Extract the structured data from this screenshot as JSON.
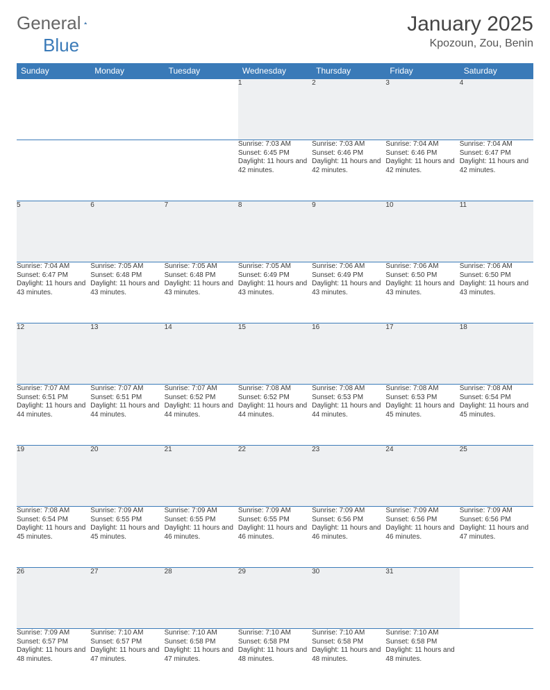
{
  "brand": {
    "part1": "General",
    "part2": "Blue"
  },
  "title": "January 2025",
  "location": "Kpozoun, Zou, Benin",
  "colors": {
    "header_bg": "#3a7ab8",
    "header_text": "#ffffff",
    "daynum_bg": "#eef0f2",
    "border": "#3a7ab8",
    "text": "#3a3a3a",
    "title": "#444444",
    "location": "#555555"
  },
  "fonts": {
    "body_pt": 10,
    "daynum_pt": 11,
    "header_pt": 12,
    "title_pt": 30,
    "location_pt": 16
  },
  "dayNames": [
    "Sunday",
    "Monday",
    "Tuesday",
    "Wednesday",
    "Thursday",
    "Friday",
    "Saturday"
  ],
  "weeks": [
    [
      null,
      null,
      null,
      {
        "n": 1,
        "sr": "7:03 AM",
        "ss": "6:45 PM",
        "dl": "11 hours and 42 minutes."
      },
      {
        "n": 2,
        "sr": "7:03 AM",
        "ss": "6:46 PM",
        "dl": "11 hours and 42 minutes."
      },
      {
        "n": 3,
        "sr": "7:04 AM",
        "ss": "6:46 PM",
        "dl": "11 hours and 42 minutes."
      },
      {
        "n": 4,
        "sr": "7:04 AM",
        "ss": "6:47 PM",
        "dl": "11 hours and 42 minutes."
      }
    ],
    [
      {
        "n": 5,
        "sr": "7:04 AM",
        "ss": "6:47 PM",
        "dl": "11 hours and 43 minutes."
      },
      {
        "n": 6,
        "sr": "7:05 AM",
        "ss": "6:48 PM",
        "dl": "11 hours and 43 minutes."
      },
      {
        "n": 7,
        "sr": "7:05 AM",
        "ss": "6:48 PM",
        "dl": "11 hours and 43 minutes."
      },
      {
        "n": 8,
        "sr": "7:05 AM",
        "ss": "6:49 PM",
        "dl": "11 hours and 43 minutes."
      },
      {
        "n": 9,
        "sr": "7:06 AM",
        "ss": "6:49 PM",
        "dl": "11 hours and 43 minutes."
      },
      {
        "n": 10,
        "sr": "7:06 AM",
        "ss": "6:50 PM",
        "dl": "11 hours and 43 minutes."
      },
      {
        "n": 11,
        "sr": "7:06 AM",
        "ss": "6:50 PM",
        "dl": "11 hours and 43 minutes."
      }
    ],
    [
      {
        "n": 12,
        "sr": "7:07 AM",
        "ss": "6:51 PM",
        "dl": "11 hours and 44 minutes."
      },
      {
        "n": 13,
        "sr": "7:07 AM",
        "ss": "6:51 PM",
        "dl": "11 hours and 44 minutes."
      },
      {
        "n": 14,
        "sr": "7:07 AM",
        "ss": "6:52 PM",
        "dl": "11 hours and 44 minutes."
      },
      {
        "n": 15,
        "sr": "7:08 AM",
        "ss": "6:52 PM",
        "dl": "11 hours and 44 minutes."
      },
      {
        "n": 16,
        "sr": "7:08 AM",
        "ss": "6:53 PM",
        "dl": "11 hours and 44 minutes."
      },
      {
        "n": 17,
        "sr": "7:08 AM",
        "ss": "6:53 PM",
        "dl": "11 hours and 45 minutes."
      },
      {
        "n": 18,
        "sr": "7:08 AM",
        "ss": "6:54 PM",
        "dl": "11 hours and 45 minutes."
      }
    ],
    [
      {
        "n": 19,
        "sr": "7:08 AM",
        "ss": "6:54 PM",
        "dl": "11 hours and 45 minutes."
      },
      {
        "n": 20,
        "sr": "7:09 AM",
        "ss": "6:55 PM",
        "dl": "11 hours and 45 minutes."
      },
      {
        "n": 21,
        "sr": "7:09 AM",
        "ss": "6:55 PM",
        "dl": "11 hours and 46 minutes."
      },
      {
        "n": 22,
        "sr": "7:09 AM",
        "ss": "6:55 PM",
        "dl": "11 hours and 46 minutes."
      },
      {
        "n": 23,
        "sr": "7:09 AM",
        "ss": "6:56 PM",
        "dl": "11 hours and 46 minutes."
      },
      {
        "n": 24,
        "sr": "7:09 AM",
        "ss": "6:56 PM",
        "dl": "11 hours and 46 minutes."
      },
      {
        "n": 25,
        "sr": "7:09 AM",
        "ss": "6:56 PM",
        "dl": "11 hours and 47 minutes."
      }
    ],
    [
      {
        "n": 26,
        "sr": "7:09 AM",
        "ss": "6:57 PM",
        "dl": "11 hours and 48 minutes."
      },
      {
        "n": 27,
        "sr": "7:10 AM",
        "ss": "6:57 PM",
        "dl": "11 hours and 47 minutes."
      },
      {
        "n": 28,
        "sr": "7:10 AM",
        "ss": "6:58 PM",
        "dl": "11 hours and 47 minutes."
      },
      {
        "n": 29,
        "sr": "7:10 AM",
        "ss": "6:58 PM",
        "dl": "11 hours and 48 minutes."
      },
      {
        "n": 30,
        "sr": "7:10 AM",
        "ss": "6:58 PM",
        "dl": "11 hours and 48 minutes."
      },
      {
        "n": 31,
        "sr": "7:10 AM",
        "ss": "6:58 PM",
        "dl": "11 hours and 48 minutes."
      },
      null
    ]
  ],
  "labels": {
    "sunrise": "Sunrise:",
    "sunset": "Sunset:",
    "daylight": "Daylight:"
  }
}
